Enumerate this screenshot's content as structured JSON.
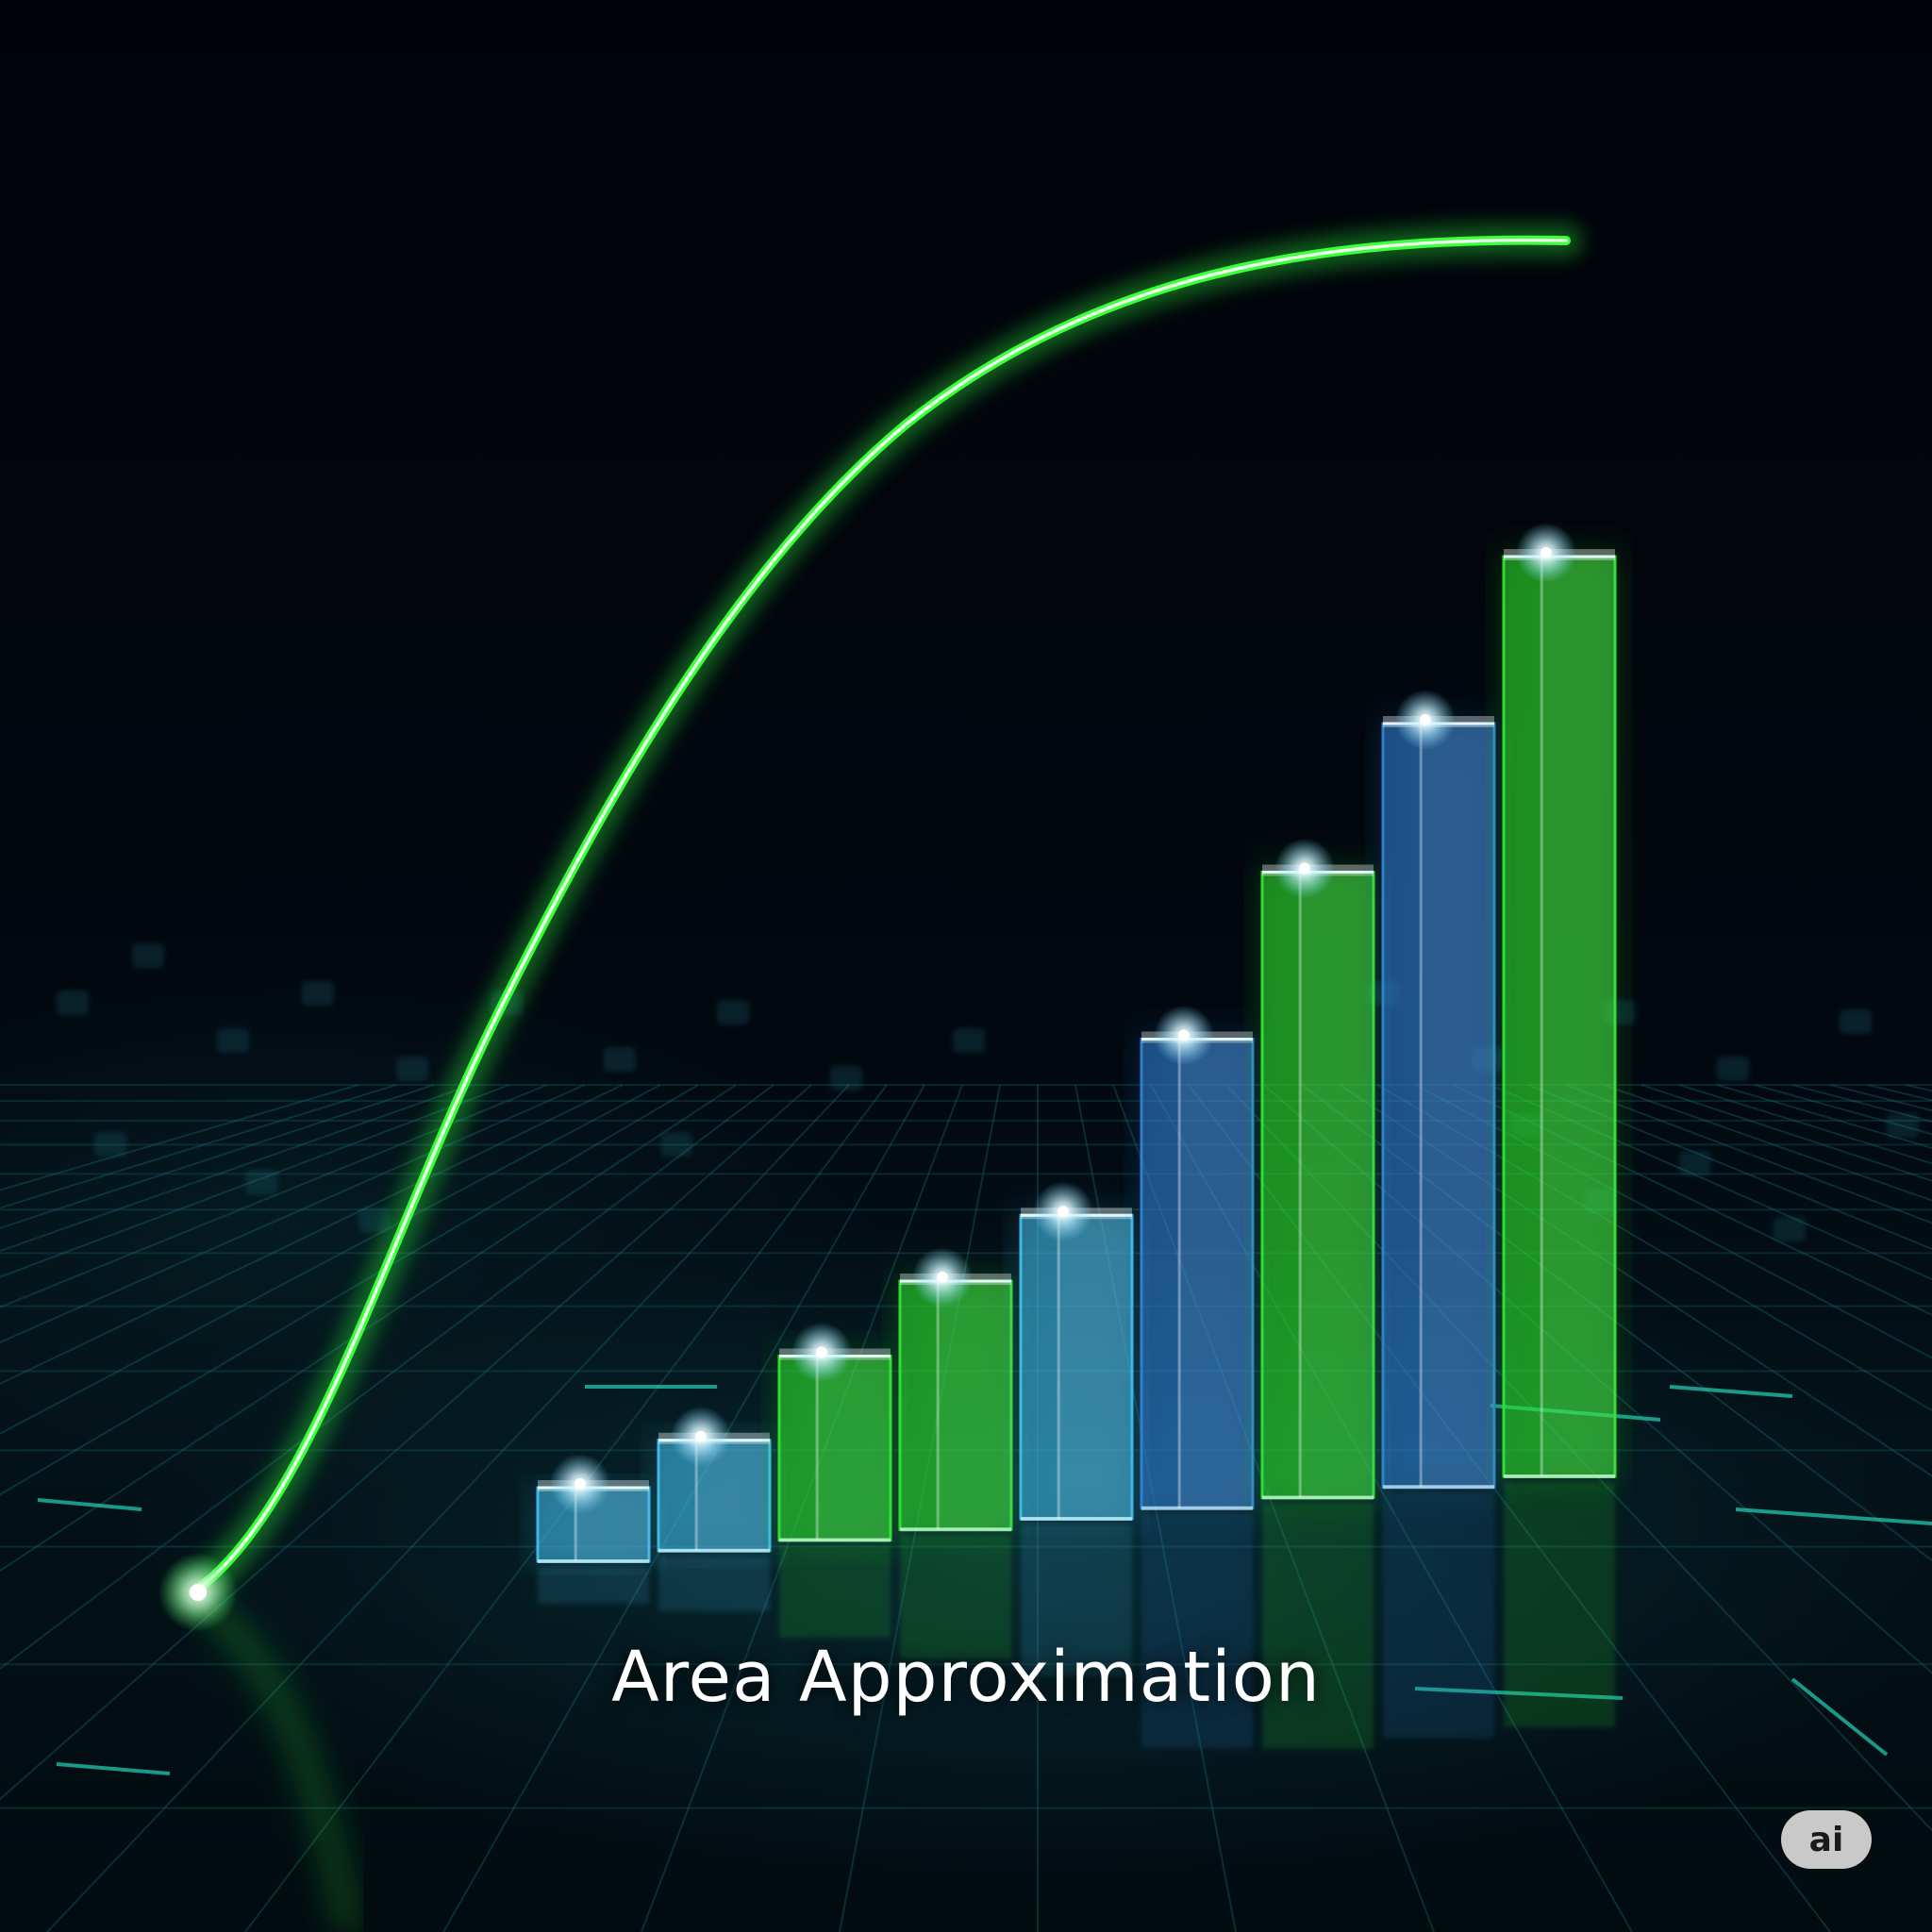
{
  "title": "Area Approximation",
  "badge": "ai",
  "colors": {
    "curve": "#3cff3c",
    "bar_green": "#2ee02e",
    "bar_blue": "#2f7fd0",
    "bar_cyan": "#3fb8e6",
    "glow": "#e8fbff",
    "grid": "#1d6e78"
  },
  "bars": [
    {
      "level": 0.08,
      "color": "cyan"
    },
    {
      "level": 0.12,
      "color": "cyan"
    },
    {
      "level": 0.2,
      "color": "green"
    },
    {
      "level": 0.27,
      "color": "green"
    },
    {
      "level": 0.33,
      "color": "cyan"
    },
    {
      "level": 0.51,
      "color": "blue"
    },
    {
      "level": 0.68,
      "color": "green"
    },
    {
      "level": 0.83,
      "color": "blue"
    },
    {
      "level": 1.0,
      "color": "green"
    }
  ]
}
